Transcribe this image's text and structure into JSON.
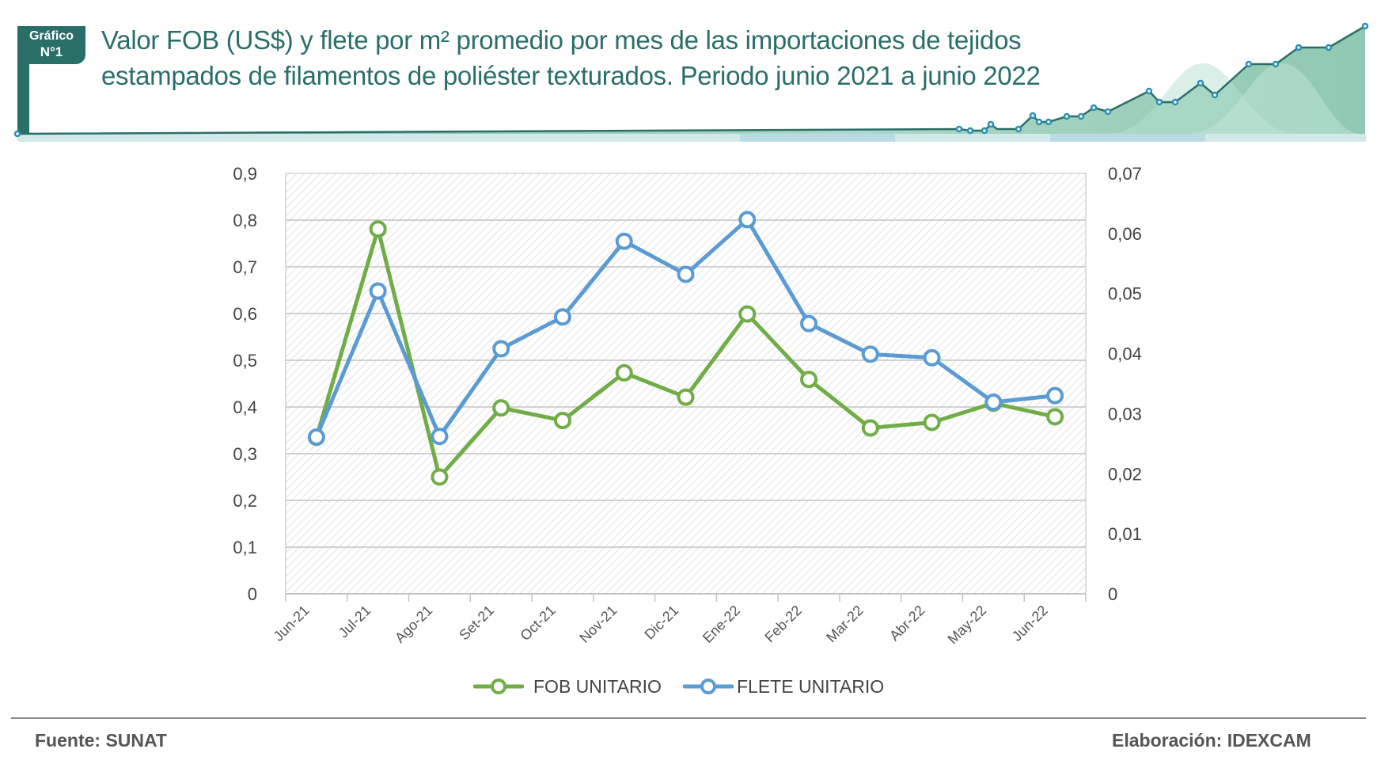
{
  "header": {
    "badge_line1": "Gráfico",
    "badge_line2": "N°1",
    "title_line1": "Valor FOB (US$) y flete por m² promedio por mes de las importaciones de tejidos",
    "title_line2": "estampados de filamentos de poliéster texturados. Periodo junio 2021 a junio 2022"
  },
  "colors": {
    "brand_teal": "#2a6e68",
    "fob": "#70ad47",
    "flete": "#5b9bd5",
    "grid": "#c8c8c8",
    "deco_fill": "#8cc6ae",
    "deco_marker": "#2b8fb5"
  },
  "chart_data": {
    "type": "line",
    "title": "Valor FOB (US$) y flete por m² promedio por mes de las importaciones de tejidos estampados de filamentos de poliéster texturados. Periodo junio 2021 a junio 2022",
    "categories": [
      "Jun-21",
      "Jul-21",
      "Ago-21",
      "Set-21",
      "Oct-21",
      "Nov-21",
      "Dic-21",
      "Ene-22",
      "Feb-22",
      "Mar-22",
      "Abr-22",
      "May-22",
      "Jun-22"
    ],
    "series": [
      {
        "name": "FOB UNITARIO",
        "axis": "left",
        "color": "#70ad47",
        "values": [
          0.335,
          0.781,
          0.25,
          0.398,
          0.371,
          0.473,
          0.421,
          0.599,
          0.459,
          0.355,
          0.367,
          0.408,
          0.379
        ]
      },
      {
        "name": "FLETE UNITARIO",
        "axis": "right",
        "color": "#5b9bd5",
        "values": [
          0.0261,
          0.0504,
          0.0262,
          0.0408,
          0.0461,
          0.0587,
          0.0532,
          0.0623,
          0.045,
          0.0399,
          0.0393,
          0.0319,
          0.033
        ]
      }
    ],
    "y_left": {
      "min": 0,
      "max": 0.9,
      "ticks": [
        "0",
        "0,1",
        "0,2",
        "0,3",
        "0,4",
        "0,5",
        "0,6",
        "0,7",
        "0,8",
        "0,9"
      ]
    },
    "y_right": {
      "min": 0,
      "max": 0.07,
      "ticks": [
        "0",
        "0,01",
        "0,02",
        "0,03",
        "0,04",
        "0,05",
        "0,06",
        "0,07"
      ]
    },
    "xlabel": "",
    "ylabel": "",
    "grid": true,
    "legend_position": "bottom"
  },
  "legend": {
    "fob_label": "FOB UNITARIO",
    "flete_label": "FLETE UNITARIO"
  },
  "footer": {
    "source": "Fuente: SUNAT",
    "credit": "Elaboración: IDEXCAM"
  }
}
